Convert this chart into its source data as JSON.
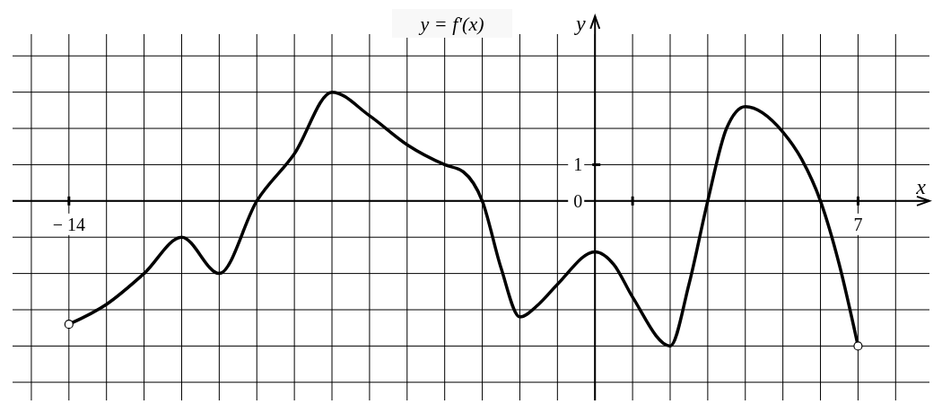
{
  "chart_data": {
    "type": "line",
    "title": "y = f′(x)",
    "xlabel": "x",
    "ylabel": "y",
    "x": [
      -14,
      -13,
      -12,
      -11,
      -10,
      -9,
      -8,
      -7,
      -6,
      -5,
      -4,
      -3.5,
      -3,
      -2.5,
      -2,
      -1.5,
      -1,
      0,
      0.5,
      1,
      2,
      2.5,
      3,
      3.5,
      4,
      5,
      5.5,
      6,
      6.5,
      7
    ],
    "series": [
      {
        "color": "#000000",
        "values": [
          -3.4,
          -2.85,
          -2,
          -1,
          -2,
          0,
          1.3,
          3,
          2.35,
          1.55,
          1,
          0.8,
          0,
          -1.85,
          -3.2,
          -2.85,
          -2.3,
          -1.4,
          -1.75,
          -2.65,
          -4,
          -2.3,
          0,
          2,
          2.6,
          1.9,
          1.15,
          0,
          -1.75,
          -4
        ]
      }
    ],
    "xlim": [
      -15.5,
      8.9
    ],
    "ylim": [
      -5.5,
      4.6
    ],
    "xticks": [
      {
        "value": -15,
        "label": null
      },
      {
        "value": -14,
        "label": "− 14"
      },
      {
        "value": -13,
        "label": null
      },
      {
        "value": -12,
        "label": null
      },
      {
        "value": -11,
        "label": null
      },
      {
        "value": -10,
        "label": null
      },
      {
        "value": -9,
        "label": null
      },
      {
        "value": -8,
        "label": null
      },
      {
        "value": -7,
        "label": null
      },
      {
        "value": -6,
        "label": null
      },
      {
        "value": -5,
        "label": null
      },
      {
        "value": -4,
        "label": null
      },
      {
        "value": -3,
        "label": null
      },
      {
        "value": -2,
        "label": null
      },
      {
        "value": -1,
        "label": null
      },
      {
        "value": 0,
        "label": null
      },
      {
        "value": 1,
        "label": null
      },
      {
        "value": 2,
        "label": null
      },
      {
        "value": 3,
        "label": null
      },
      {
        "value": 4,
        "label": null
      },
      {
        "value": 5,
        "label": null
      },
      {
        "value": 6,
        "label": null
      },
      7,
      {
        "value": 8,
        "label": null
      }
    ],
    "yticks": [
      {
        "value": -5,
        "label": null
      },
      {
        "value": -4,
        "label": null
      },
      {
        "value": -3,
        "label": null
      },
      {
        "value": -2,
        "label": null
      },
      {
        "value": -1,
        "label": null
      },
      0,
      1,
      {
        "value": 2,
        "label": null
      },
      {
        "value": 3,
        "label": null
      },
      {
        "value": 4,
        "label": null
      }
    ],
    "grid": true,
    "marker": "none",
    "line_style": "solid"
  }
}
